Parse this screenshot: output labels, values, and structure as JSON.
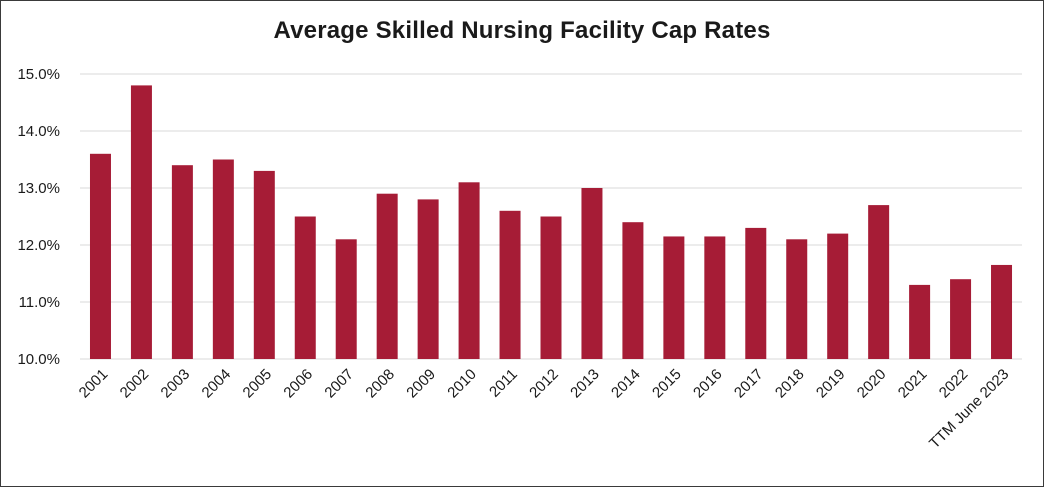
{
  "chart_data": {
    "type": "bar",
    "title": "Average Skilled Nursing Facility Cap Rates",
    "xlabel": "",
    "ylabel": "",
    "ylim": [
      10.0,
      15.0
    ],
    "y_ticks": [
      10.0,
      11.0,
      12.0,
      13.0,
      14.0,
      15.0
    ],
    "y_tick_labels": [
      "10.0%",
      "11.0%",
      "12.0%",
      "13.0%",
      "14.0%",
      "15.0%"
    ],
    "grid": true,
    "bar_color": "#A61C36",
    "grid_color": "#D9D9D9",
    "categories": [
      "2001",
      "2002",
      "2003",
      "2004",
      "2005",
      "2006",
      "2007",
      "2008",
      "2009",
      "2010",
      "2011",
      "2012",
      "2013",
      "2014",
      "2015",
      "2016",
      "2017",
      "2018",
      "2019",
      "2020",
      "2021",
      "2022",
      "TTM June 2023"
    ],
    "values": [
      13.6,
      14.8,
      13.4,
      13.5,
      13.3,
      12.5,
      12.1,
      12.9,
      12.8,
      13.1,
      12.6,
      12.5,
      13.0,
      12.4,
      12.15,
      12.15,
      12.3,
      12.1,
      12.2,
      12.7,
      11.3,
      11.4,
      11.65
    ]
  }
}
